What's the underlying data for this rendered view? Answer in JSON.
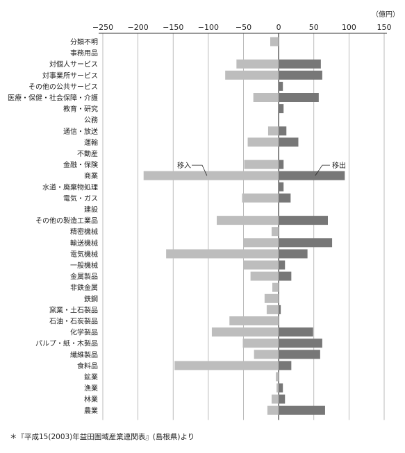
{
  "chart_data": {
    "type": "bar",
    "orientation": "horizontal",
    "unit": "（億円）",
    "xlim": [
      -250,
      150
    ],
    "x_ticks": [
      -250,
      -200,
      -150,
      -100,
      -50,
      0,
      50,
      100,
      150
    ],
    "x_tick_labels": [
      "−250",
      "−200",
      "−150",
      "−100",
      "−50",
      "0",
      "50",
      "100",
      "150"
    ],
    "grid": true,
    "categories": [
      "分類不明",
      "事務用品",
      "対個人サービス",
      "対事業所サービス",
      "その他の公共サービス",
      "医療・保健・社会保障・介護",
      "教育・研究",
      "公務",
      "通信・放送",
      "運輸",
      "不動産",
      "金融・保険",
      "商業",
      "水道・廃棄物処理",
      "電気・ガス",
      "建設",
      "その他の製造工業品",
      "精密機械",
      "輸送機械",
      "電気機械",
      "一般機械",
      "金属製品",
      "非鉄金属",
      "鉄鋼",
      "窯業・土石製品",
      "石油・石炭製品",
      "化学製品",
      "パルプ・紙・木製品",
      "繊維製品",
      "食料品",
      "鉱業",
      "漁業",
      "林業",
      "農業"
    ],
    "series": [
      {
        "name": "移入",
        "color": "#bdbdbd",
        "values": [
          -12,
          0,
          -60,
          -76,
          0,
          -36,
          0,
          0,
          -15,
          -44,
          0,
          -49,
          -192,
          0,
          -52,
          0,
          -88,
          -10,
          -50,
          -160,
          -50,
          -40,
          -9,
          -20,
          -17,
          -70,
          -95,
          -51,
          -35,
          -148,
          -4,
          -3,
          -10,
          -16
        ]
      },
      {
        "name": "移出",
        "color": "#777777",
        "values": [
          0,
          0,
          60,
          62,
          6,
          57,
          7,
          0,
          11,
          28,
          0,
          7,
          94,
          7,
          17,
          0,
          70,
          0,
          76,
          41,
          9,
          18,
          0,
          0,
          3,
          0,
          49,
          62,
          59,
          18,
          0,
          6,
          9,
          66
        ]
      }
    ],
    "annotations": {
      "import_label": "移入",
      "export_label": "移出"
    }
  },
  "footnote": "＊『平成15(2003)年益田圏域産業連関表』(島根県)より"
}
